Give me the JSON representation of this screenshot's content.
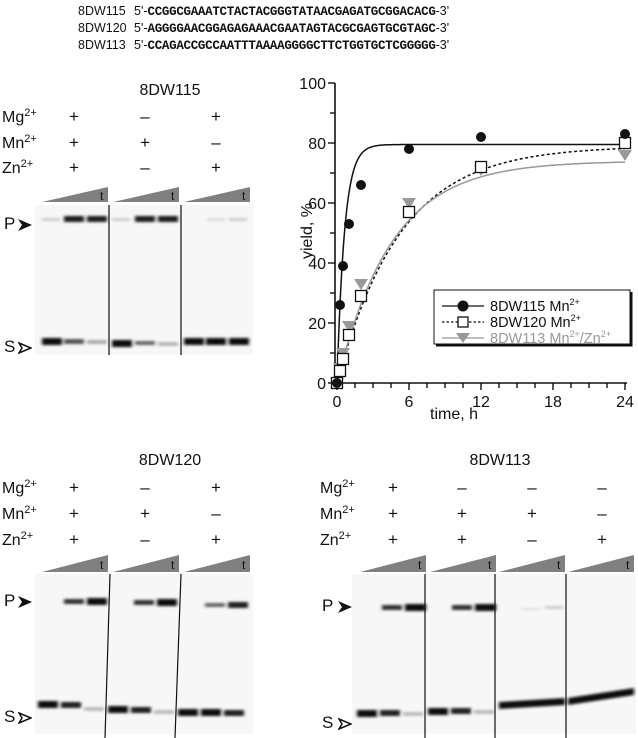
{
  "sequences": [
    {
      "name": "8DW115",
      "prefix": "5'-",
      "seq": "CCGGCGAAATCTACTACGGGTATAACGAGATGCGGACACG",
      "suffix": "-3'"
    },
    {
      "name": "8DW120",
      "prefix": "5'-",
      "seq": "AGGGGAACGGAGAGAAACGAATAGTACGCGAGTGCGTAGC",
      "suffix": "-3'"
    },
    {
      "name": "8DW113",
      "prefix": "5'-",
      "seq": "CCAGACCGCCAATTTAAAAGGGGCTTCTGGTGCTCGGGGG",
      "suffix": "-3'"
    }
  ],
  "ion_labels": {
    "mg": "Mg",
    "mn": "Mn",
    "zn": "Zn",
    "charge": "2+"
  },
  "band_labels": {
    "product": "P",
    "substrate": "S",
    "time": "t"
  },
  "gels": [
    {
      "title": "8DW115",
      "lanes": [
        {
          "mg": "+",
          "mn": "+",
          "zn": "+"
        },
        {
          "mg": "–",
          "mn": "+",
          "zn": "–"
        },
        {
          "mg": "+",
          "mn": "–",
          "zn": "+"
        }
      ]
    },
    {
      "title": "8DW120",
      "lanes": [
        {
          "mg": "+",
          "mn": "+",
          "zn": "+"
        },
        {
          "mg": "–",
          "mn": "+",
          "zn": "–"
        },
        {
          "mg": "+",
          "mn": "–",
          "zn": "+"
        }
      ]
    },
    {
      "title": "8DW113",
      "lanes": [
        {
          "mg": "+",
          "mn": "+",
          "zn": "+"
        },
        {
          "mg": "–",
          "mn": "+",
          "zn": "+"
        },
        {
          "mg": "–",
          "mn": "+",
          "zn": "–"
        },
        {
          "mg": "–",
          "mn": "–",
          "zn": "+"
        }
      ]
    }
  ],
  "chart_data": {
    "type": "scatter",
    "title": "",
    "xlabel": "time, h",
    "ylabel": "yield, %",
    "xlim": [
      0,
      24
    ],
    "ylim": [
      0,
      100
    ],
    "xticks": [
      0,
      6,
      12,
      18,
      24
    ],
    "yticks": [
      0,
      20,
      40,
      60,
      80,
      100
    ],
    "grid": false,
    "legend_position": "lower right",
    "series": [
      {
        "name": "8DW115 Mn2+",
        "marker": "filled-circle",
        "line": "solid",
        "color": "#000000",
        "x": [
          0,
          0.25,
          0.5,
          1,
          2,
          6,
          12,
          24
        ],
        "y": [
          0,
          26,
          39,
          53,
          66,
          78,
          82,
          83
        ],
        "fit_plateau": 79.5,
        "fit_k": 1.6
      },
      {
        "name": "8DW120 Mn2+",
        "marker": "open-square",
        "line": "dotted",
        "color": "#000000",
        "x": [
          0,
          0.25,
          0.5,
          1,
          2,
          6,
          12,
          24
        ],
        "y": [
          0,
          4,
          8,
          16,
          29,
          57,
          72,
          80
        ],
        "fit_plateau": 79,
        "fit_k": 0.19
      },
      {
        "name": "8DW113 Mn2+/Zn2+",
        "marker": "filled-triangle-down",
        "line": "solid",
        "color": "#999999",
        "x": [
          0,
          0.25,
          0.5,
          1,
          2,
          6,
          12,
          24
        ],
        "y": [
          0,
          5,
          10,
          19,
          33,
          60,
          71,
          76
        ],
        "fit_plateau": 74,
        "fit_k": 0.22
      }
    ]
  },
  "legend": [
    {
      "label": "8DW115 Mn",
      "sup": "2+",
      "extra": ""
    },
    {
      "label": "8DW120 Mn",
      "sup": "2+",
      "extra": ""
    },
    {
      "label": "8DW113 Mn",
      "sup": "2+",
      "extra": "/Zn",
      "sup2": "2+"
    }
  ]
}
